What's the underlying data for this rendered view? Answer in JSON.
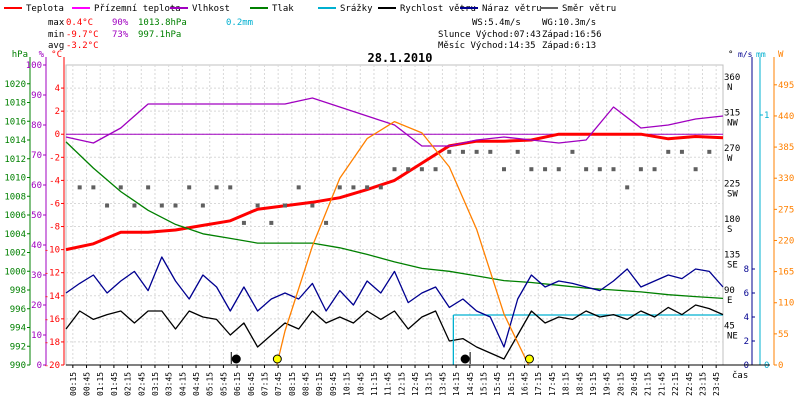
{
  "legend": [
    {
      "label": "Teplota",
      "color": "#ff0000"
    },
    {
      "label": "Přízemní teplota",
      "color": "#ff00ff"
    },
    {
      "label": "Vlhkost",
      "color": "#a000c0"
    },
    {
      "label": "Tlak",
      "color": "#008000"
    },
    {
      "label": "Srážky",
      "color": "#00b0d0"
    },
    {
      "label": "Rychlost větru",
      "color": "#000000"
    },
    {
      "label": "Náraz větru",
      "color": "#000090"
    },
    {
      "label": "Směr větru",
      "color": "#606060"
    }
  ],
  "stats": {
    "max_label": "max",
    "max_temp": "0.4°C",
    "max_hum": "90%",
    "max_press": "1013.8hPa",
    "max_rain": "0.2mm",
    "min_label": "min",
    "min_temp": "-9.7°C",
    "min_hum": "73%",
    "min_press": "997.1hPa",
    "avg_label": "avg",
    "avg_temp": "-3.2°C"
  },
  "info": {
    "ws": "WS:5.4m/s",
    "wg": "WG:10.3m/s",
    "sun": "Slunce Východ:07:43",
    "sun_set": "Západ:16:56",
    "moon": "Měsíc  Východ:14:35",
    "moon_set": "Západ:6:13"
  },
  "chart_data": {
    "type": "line",
    "title": "28.1.2010",
    "x_unit_label": "čas",
    "x_tick_labels": [
      "00:15",
      "00:45",
      "01:15",
      "01:45",
      "02:15",
      "02:45",
      "03:15",
      "03:45",
      "04:15",
      "04:45",
      "05:15",
      "05:45",
      "06:15",
      "06:45",
      "07:15",
      "07:45",
      "08:15",
      "08:45",
      "09:15",
      "09:45",
      "10:15",
      "10:45",
      "11:15",
      "11:45",
      "12:15",
      "12:45",
      "13:15",
      "13:45",
      "14:15",
      "14:45",
      "15:15",
      "15:45",
      "16:15",
      "16:45",
      "17:15",
      "17:45",
      "18:15",
      "18:45",
      "19:15",
      "19:45",
      "20:15",
      "20:45",
      "21:15",
      "21:45",
      "22:15",
      "22:45",
      "23:15",
      "23:45"
    ],
    "axes": {
      "hpa": {
        "unit": "hPa",
        "color": "#008000",
        "ylim": [
          990,
          1022
        ],
        "ticks": [
          990,
          992,
          994,
          996,
          998,
          1000,
          1002,
          1004,
          1006,
          1008,
          1010,
          1012,
          1014,
          1016,
          1018,
          1020
        ]
      },
      "pct": {
        "unit": "%",
        "color": "#a000c0",
        "ylim": [
          0,
          100
        ],
        "ticks": [
          0,
          10,
          20,
          30,
          40,
          50,
          60,
          70,
          80,
          90,
          100
        ]
      },
      "temp": {
        "unit": "°C",
        "color": "#ff0000",
        "ylim": [
          -20,
          6
        ],
        "ticks": [
          -20,
          -18,
          -16,
          -14,
          -12,
          -10,
          -8,
          -6,
          -4,
          -2,
          0,
          2,
          4
        ]
      },
      "dir": {
        "unit": "°",
        "color": "#000000",
        "ylim": [
          0,
          380
        ],
        "ticks": [
          0,
          45,
          90,
          135,
          180,
          225,
          270,
          315,
          360
        ],
        "labels": [
          "",
          "NE",
          "E",
          "SE",
          "S",
          "SW",
          "W",
          "NW",
          "N"
        ]
      },
      "ms": {
        "unit": "m/s",
        "color": "#000090",
        "ylim": [
          0,
          25
        ],
        "ticks": [
          0,
          2,
          4,
          6,
          8
        ]
      },
      "mm": {
        "unit": "mm",
        "color": "#00b0d0",
        "ylim": [
          0,
          1.2
        ],
        "ticks": [
          0,
          1
        ]
      },
      "w": {
        "unit": "W",
        "color": "#ff8000",
        "ylim": [
          0,
          530
        ],
        "ticks": [
          0,
          55,
          110,
          165,
          220,
          275,
          330,
          385,
          440,
          495
        ]
      }
    },
    "zero_line_temp": 0,
    "series": [
      {
        "name": "Teplota",
        "axis": "temp",
        "color": "#ff0000",
        "x": [
          0,
          1,
          2,
          3,
          4,
          5,
          6,
          7,
          8,
          9,
          10,
          11,
          12,
          13,
          14,
          15,
          16,
          17,
          18,
          19,
          20,
          21,
          22,
          23,
          24
        ],
        "y": [
          -10,
          -9.5,
          -8.5,
          -8.5,
          -8.3,
          -7.9,
          -7.5,
          -6.5,
          -6.2,
          -5.9,
          -5.5,
          -4.8,
          -4,
          -2.5,
          -1,
          -0.6,
          -0.6,
          -0.5,
          0,
          0,
          0,
          0,
          -0.4,
          -0.2,
          -0.3
        ]
      },
      {
        "name": "Vlhkost",
        "axis": "pct",
        "color": "#a000c0",
        "x": [
          0,
          1,
          2,
          3,
          4,
          5,
          6,
          7,
          8,
          9,
          10,
          11,
          12,
          13,
          14,
          15,
          16,
          17,
          18,
          19,
          20,
          21,
          22,
          23,
          24
        ],
        "y": [
          76,
          74,
          79,
          87,
          87,
          87,
          87,
          87,
          87,
          89,
          86,
          83,
          80,
          73,
          73,
          75,
          76,
          75,
          74,
          75,
          86,
          79,
          80,
          82,
          83
        ]
      },
      {
        "name": "Tlak",
        "axis": "hpa",
        "color": "#008000",
        "x": [
          0,
          1,
          2,
          3,
          4,
          5,
          6,
          7,
          8,
          9,
          10,
          11,
          12,
          13,
          14,
          15,
          16,
          17,
          18,
          19,
          20,
          21,
          22,
          23,
          24
        ],
        "y": [
          1013.8,
          1011,
          1008.5,
          1006.5,
          1005,
          1004,
          1003.5,
          1003,
          1003,
          1003,
          1002.5,
          1001.8,
          1001,
          1000.3,
          1000,
          999.5,
          999,
          998.8,
          998.5,
          998.2,
          998,
          997.8,
          997.5,
          997.3,
          997.1
        ]
      },
      {
        "name": "Srážky",
        "axis": "mm",
        "color": "#00b0d0",
        "x": [
          14.15,
          14.3,
          24
        ],
        "y": [
          0.2,
          0.2,
          0.2
        ]
      },
      {
        "name": "Rychlost větru",
        "axis": "ms",
        "color": "#000000",
        "x": [
          0,
          0.5,
          1,
          1.5,
          2,
          2.5,
          3,
          3.5,
          4,
          4.5,
          5,
          5.5,
          6,
          6.5,
          7,
          7.5,
          8,
          8.5,
          9,
          9.5,
          10,
          10.5,
          11,
          11.5,
          12,
          12.5,
          13,
          13.5,
          14,
          14.5,
          15,
          15.5,
          16,
          16.5,
          17,
          17.5,
          18,
          18.5,
          19,
          19.5,
          20,
          20.5,
          21,
          21.5,
          22,
          22.5,
          23,
          23.5,
          24
        ],
        "y": [
          3,
          4.5,
          3.8,
          4.2,
          4.5,
          3.5,
          4.5,
          4.5,
          3,
          4.5,
          4,
          3.8,
          2.5,
          3.5,
          1.5,
          2.5,
          3.5,
          3,
          4.5,
          3.5,
          4,
          3.5,
          4.5,
          3.8,
          4.5,
          3,
          4,
          4.5,
          2,
          2.2,
          1.5,
          1,
          0.5,
          2.5,
          4.5,
          3.5,
          4,
          3.8,
          4.5,
          4,
          4.2,
          3.8,
          4.5,
          4,
          4.8,
          4.2,
          5,
          4.7,
          4.2
        ]
      },
      {
        "name": "Náraz větru",
        "axis": "ms",
        "color": "#000090",
        "x": [
          0,
          0.5,
          1,
          1.5,
          2,
          2.5,
          3,
          3.5,
          4,
          4.5,
          5,
          5.5,
          6,
          6.5,
          7,
          7.5,
          8,
          8.5,
          9,
          9.5,
          10,
          10.5,
          11,
          11.5,
          12,
          12.5,
          13,
          13.5,
          14,
          14.5,
          15,
          15.5,
          16,
          16.5,
          17,
          17.5,
          18,
          18.5,
          19,
          19.5,
          20,
          20.5,
          21,
          21.5,
          22,
          22.5,
          23,
          23.5,
          24
        ],
        "y": [
          6,
          6.8,
          7.5,
          6,
          7,
          7.8,
          6.2,
          9,
          7,
          5.5,
          7.5,
          6.5,
          4.5,
          6.5,
          4.5,
          5.5,
          6,
          5.5,
          6.8,
          4.5,
          6.2,
          5,
          7,
          6,
          7.8,
          5.2,
          6,
          6.5,
          4.8,
          5.5,
          4.5,
          4,
          1.5,
          5.5,
          7.5,
          6.5,
          7,
          6.8,
          6.5,
          6.2,
          7,
          8,
          6.5,
          7,
          7.5,
          7.2,
          8,
          7.8,
          6.5
        ]
      },
      {
        "name": "Směr větru",
        "axis": "dir",
        "color": "#606060",
        "style": "squares",
        "x": [
          0.5,
          1,
          1.5,
          2,
          2.5,
          3,
          3.5,
          4,
          4.5,
          5,
          5.5,
          6,
          6.5,
          7,
          7.5,
          8,
          8.5,
          9,
          9.5,
          10,
          10.5,
          11,
          11.5,
          12,
          12.5,
          13,
          13.5,
          14,
          14.5,
          15,
          15.5,
          16,
          16.5,
          17,
          17.5,
          18,
          18.5,
          19,
          19.5,
          20,
          20.5,
          21,
          21.5,
          22,
          22.5,
          23,
          23.5
        ],
        "y": [
          225,
          225,
          202,
          225,
          202,
          225,
          202,
          202,
          225,
          202,
          225,
          225,
          180,
          202,
          180,
          202,
          225,
          202,
          180,
          225,
          225,
          225,
          225,
          248,
          248,
          248,
          248,
          270,
          270,
          270,
          270,
          248,
          270,
          248,
          248,
          248,
          270,
          248,
          248,
          248,
          225,
          248,
          248,
          270,
          270,
          248,
          270
        ]
      },
      {
        "name": "Sluneční záření",
        "axis": "w",
        "color": "#ff8000",
        "x": [
          7.7,
          8,
          9,
          10,
          11,
          12,
          13,
          14,
          15,
          16,
          16.9
        ],
        "y": [
          0,
          60,
          210,
          330,
          400,
          430,
          410,
          350,
          240,
          90,
          0
        ]
      }
    ],
    "markers": {
      "sun_rise": 7.72,
      "sun_set": 16.93,
      "moon_rise": 14.58,
      "moon_set": 6.22
    }
  }
}
